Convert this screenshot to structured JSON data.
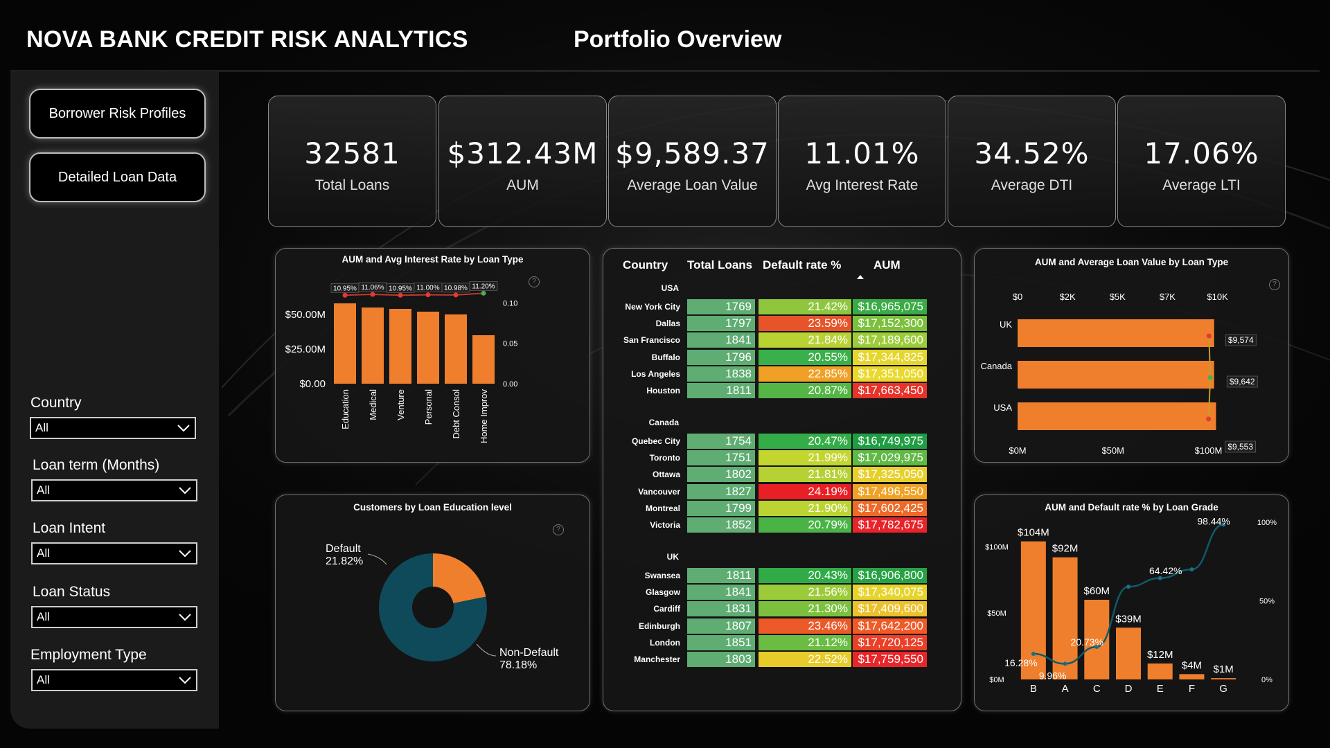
{
  "header": {
    "title": "NOVA BANK CREDIT RISK ANALYTICS",
    "page": "Portfolio Overview"
  },
  "nav": {
    "borrower": "Borrower Risk Profiles",
    "detailed": "Detailed Loan Data"
  },
  "filters": [
    {
      "label": "Country",
      "value": "All"
    },
    {
      "label": "Loan term (Months)",
      "value": "All"
    },
    {
      "label": "Loan Intent",
      "value": "All"
    },
    {
      "label": "Loan Status",
      "value": "All"
    },
    {
      "label": "Employment Type",
      "value": "All"
    }
  ],
  "kpis": [
    {
      "value": "32581",
      "label": "Total Loans"
    },
    {
      "value": "$312.43M",
      "label": "AUM"
    },
    {
      "value": "$9,589.37",
      "label": "Average Loan Value"
    },
    {
      "value": "11.01%",
      "label": "Avg Interest Rate"
    },
    {
      "value": "34.52%",
      "label": "Average DTI"
    },
    {
      "value": "17.06%",
      "label": "Average LTI"
    }
  ],
  "chart_data": [
    {
      "id": "loan_type",
      "type": "bar",
      "title": "AUM and Avg Interest Rate by Loan Type",
      "categories": [
        "Education",
        "Medical",
        "Venture",
        "Personal",
        "Debt Consol",
        "Home Improv"
      ],
      "series": [
        {
          "name": "AUM",
          "values": [
            58,
            55,
            54,
            52,
            50,
            35
          ],
          "unit": "$M"
        },
        {
          "name": "Avg Interest Rate",
          "values": [
            10.95,
            11.06,
            10.95,
            11.0,
            10.98,
            11.2
          ],
          "unit": "%"
        }
      ],
      "rate_labels": [
        "10.95%",
        "11.06%",
        "10.95%",
        "11.00%",
        "10.98%",
        "11.20%"
      ],
      "y_ticks": [
        "$50.00M",
        "$25.00M",
        "$0.00"
      ],
      "y2_ticks": [
        "0.10",
        "0.05",
        "0.00"
      ],
      "ylim": [
        0,
        70
      ],
      "y2lim": [
        0,
        0.12
      ]
    },
    {
      "id": "education",
      "type": "pie",
      "title": "Customers by Loan Education level",
      "slices": [
        {
          "name": "Default",
          "value": 21.82,
          "label": "21.82%",
          "color": "#ef7f2d"
        },
        {
          "name": "Non-Default",
          "value": 78.18,
          "label": "78.18%",
          "color": "#0f4a5a"
        }
      ]
    },
    {
      "id": "aum_value",
      "type": "bar",
      "title": "AUM and Average Loan Value by Loan Type",
      "categories": [
        "UK",
        "Canada",
        "USA"
      ],
      "aum": [
        103,
        103,
        104
      ],
      "avg_value": [
        9574,
        9642,
        9553
      ],
      "avg_labels": [
        "$9,574",
        "$9,642",
        "$9,553"
      ],
      "top_ticks": [
        "$0",
        "$2K",
        "$5K",
        "$7K",
        "$10K"
      ],
      "bottom_ticks": [
        "$0M",
        "$50M",
        "$100M"
      ],
      "xlim": [
        0,
        110
      ],
      "x2lim": [
        0,
        10500
      ]
    },
    {
      "id": "grade",
      "type": "bar",
      "title": "AUM and Default rate % by Loan Grade",
      "categories": [
        "B",
        "A",
        "C",
        "D",
        "E",
        "F",
        "G"
      ],
      "aum": [
        104,
        92,
        60,
        39,
        12,
        4,
        1
      ],
      "aum_labels": [
        "$104M",
        "$92M",
        "$60M",
        "$39M",
        "$12M",
        "$4M",
        "$1M"
      ],
      "default_rate": [
        16.28,
        9.96,
        20.73,
        59.0,
        64.42,
        70.0,
        98.44
      ],
      "rate_labels": [
        "16.28%",
        "9.96%",
        "20.73%",
        "",
        "64.42%",
        "",
        "98.44%"
      ],
      "y_ticks": [
        "$100M",
        "$50M",
        "$0M"
      ],
      "y2_ticks": [
        "100%",
        "50%",
        "0%"
      ],
      "ylim": [
        0,
        120
      ],
      "y2lim": [
        0,
        100
      ]
    }
  ],
  "table": {
    "headers": {
      "country": "Country",
      "loans": "Total Loans",
      "default": "Default rate %",
      "aum": "AUM"
    },
    "groups": [
      {
        "name": "USA",
        "rows": [
          {
            "city": "New York City",
            "loans": "1769",
            "default": "21.42%",
            "aum": "$16,965,075",
            "dcolor": "#8fc63e",
            "acolor": "#3aab45"
          },
          {
            "city": "Dallas",
            "loans": "1797",
            "default": "23.59%",
            "aum": "$17,152,300",
            "dcolor": "#e8542a",
            "acolor": "#7cc13d"
          },
          {
            "city": "San Francisco",
            "loans": "1841",
            "default": "21.84%",
            "aum": "$17,189,600",
            "dcolor": "#b8d234",
            "acolor": "#9ccc3a"
          },
          {
            "city": "Buffalo",
            "loans": "1796",
            "default": "20.55%",
            "aum": "$17,344,825",
            "dcolor": "#3ab04a",
            "acolor": "#e6d52c"
          },
          {
            "city": "Los Angeles",
            "loans": "1838",
            "default": "22.85%",
            "aum": "$17,351,050",
            "dcolor": "#f0a025",
            "acolor": "#ead92c"
          },
          {
            "city": "Houston",
            "loans": "1811",
            "default": "20.87%",
            "aum": "$17,663,450",
            "dcolor": "#55b645",
            "acolor": "#e8332a"
          }
        ]
      },
      {
        "name": "Canada",
        "rows": [
          {
            "city": "Quebec City",
            "loans": "1754",
            "default": "20.47%",
            "aum": "$16,749,975",
            "dcolor": "#34ad48",
            "acolor": "#1f9e44"
          },
          {
            "city": "Toronto",
            "loans": "1751",
            "default": "21.99%",
            "aum": "$17,029,975",
            "dcolor": "#c3d630",
            "acolor": "#60b845"
          },
          {
            "city": "Ottawa",
            "loans": "1802",
            "default": "21.81%",
            "aum": "$17,325,050",
            "dcolor": "#b5d134",
            "acolor": "#e8d02c"
          },
          {
            "city": "Vancouver",
            "loans": "1827",
            "default": "24.19%",
            "aum": "$17,496,550",
            "dcolor": "#e81f25",
            "acolor": "#f0a224"
          },
          {
            "city": "Montreal",
            "loans": "1799",
            "default": "21.90%",
            "aum": "$17,602,425",
            "dcolor": "#bcd432",
            "acolor": "#ef6a27"
          },
          {
            "city": "Victoria",
            "loans": "1852",
            "default": "20.79%",
            "aum": "$17,782,675",
            "dcolor": "#4ab346",
            "acolor": "#e8232a"
          }
        ]
      },
      {
        "name": "UK",
        "rows": [
          {
            "city": "Swansea",
            "loans": "1811",
            "default": "20.43%",
            "aum": "$16,906,800",
            "dcolor": "#30ab47",
            "acolor": "#26a244"
          },
          {
            "city": "Glasgow",
            "loans": "1841",
            "default": "21.56%",
            "aum": "$17,340,075",
            "dcolor": "#9ccb3a",
            "acolor": "#e6d42c"
          },
          {
            "city": "Cardiff",
            "loans": "1831",
            "default": "21.30%",
            "aum": "$17,409,600",
            "dcolor": "#7cc13e",
            "acolor": "#ecc12b"
          },
          {
            "city": "Edinburgh",
            "loans": "1807",
            "default": "23.46%",
            "aum": "$17,642,200",
            "dcolor": "#ec5a28",
            "acolor": "#ef5a27"
          },
          {
            "city": "London",
            "loans": "1851",
            "default": "21.12%",
            "aum": "$17,720,125",
            "dcolor": "#6bbc42",
            "acolor": "#ec3f28"
          },
          {
            "city": "Manchester",
            "loans": "1803",
            "default": "22.52%",
            "aum": "$17,759,550",
            "dcolor": "#e7cb2b",
            "acolor": "#e8262a"
          }
        ]
      }
    ]
  }
}
